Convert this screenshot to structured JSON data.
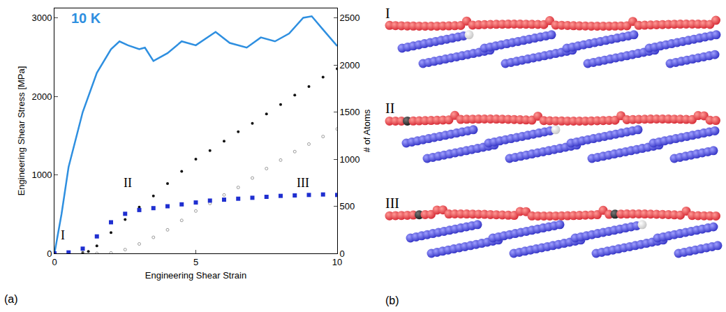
{
  "chart_data": {
    "type": "line",
    "panel_label": "(a)",
    "x_label": "Engineering Shear Strain",
    "y_label": "Engineering Shear Stress [MPa]",
    "y2_label": "# of Atoms",
    "xlim": [
      0,
      10
    ],
    "xticks": [
      0,
      5,
      10
    ],
    "ylim": [
      0,
      3120
    ],
    "yticks": [
      0,
      1000,
      2000,
      3000
    ],
    "y2lim": [
      0,
      2600
    ],
    "y2ticks": [
      0,
      500,
      1000,
      1500,
      2000,
      2500
    ],
    "grid": false,
    "series": [
      {
        "type": "line",
        "color": "#2e8fe0",
        "line_style": "solid",
        "x": [
          0,
          0.25,
          0.5,
          1,
          1.5,
          2,
          2.3,
          2.6,
          3,
          3.2,
          3.5,
          4,
          4.5,
          5,
          5.7,
          6.2,
          6.8,
          7.3,
          7.8,
          8.3,
          8.8,
          9.1,
          9.5,
          10
        ],
        "values": [
          0,
          500,
          1100,
          1800,
          2300,
          2600,
          2700,
          2650,
          2600,
          2620,
          2450,
          2550,
          2700,
          2650,
          2820,
          2680,
          2620,
          2750,
          2700,
          2800,
          3000,
          3020,
          2850,
          2640
        ]
      },
      {
        "type": "scatter",
        "axis": "y2",
        "color": "#111111",
        "marker": "circle",
        "x": [
          0,
          0.5,
          1,
          1.2,
          1.5,
          2,
          2.5,
          3,
          3.5,
          4,
          4.5,
          5,
          5.5,
          6,
          6.5,
          7,
          7.5,
          8,
          8.5,
          9,
          9.5,
          10
        ],
        "values": [
          0,
          5,
          10,
          20,
          80,
          220,
          360,
          490,
          610,
          740,
          870,
          1000,
          1090,
          1190,
          1290,
          1380,
          1480,
          1580,
          1680,
          1770,
          1870,
          1960
        ]
      },
      {
        "type": "scatter",
        "axis": "y2",
        "color": "#9a9a9a",
        "marker": "circle-open",
        "x": [
          0,
          1,
          1.5,
          2,
          2.5,
          3,
          3.5,
          4,
          4.5,
          5,
          5.5,
          6,
          6.5,
          7,
          7.5,
          8,
          8.5,
          9,
          9.5,
          10
        ],
        "values": [
          0,
          0,
          0,
          5,
          40,
          100,
          170,
          250,
          350,
          450,
          530,
          620,
          700,
          800,
          900,
          990,
          1080,
          1160,
          1240,
          1320
        ]
      },
      {
        "type": "scatter",
        "axis": "y2",
        "color": "#1f2fd0",
        "marker": "square",
        "x": [
          0,
          0.5,
          1,
          1.5,
          2,
          2.5,
          3,
          3.5,
          4,
          4.5,
          5,
          5.5,
          6,
          6.5,
          7,
          7.5,
          8,
          8.5,
          9,
          9.5,
          10
        ],
        "values": [
          0,
          10,
          50,
          180,
          330,
          420,
          460,
          480,
          500,
          520,
          540,
          560,
          570,
          580,
          590,
          600,
          610,
          615,
          620,
          625,
          620
        ]
      }
    ],
    "annotations": [
      {
        "text": "10 K",
        "x": 0.55,
        "y": 3000,
        "color": "#2e8fe0"
      },
      {
        "text": "I",
        "x": 0.3,
        "y": 230
      },
      {
        "text": "II",
        "x": 2.6,
        "y": 900
      },
      {
        "text": "III",
        "x": 8.8,
        "y": 900
      }
    ]
  },
  "figure": {
    "panel_label": "(b)",
    "snapshots": [
      "I",
      "II",
      "III"
    ]
  }
}
